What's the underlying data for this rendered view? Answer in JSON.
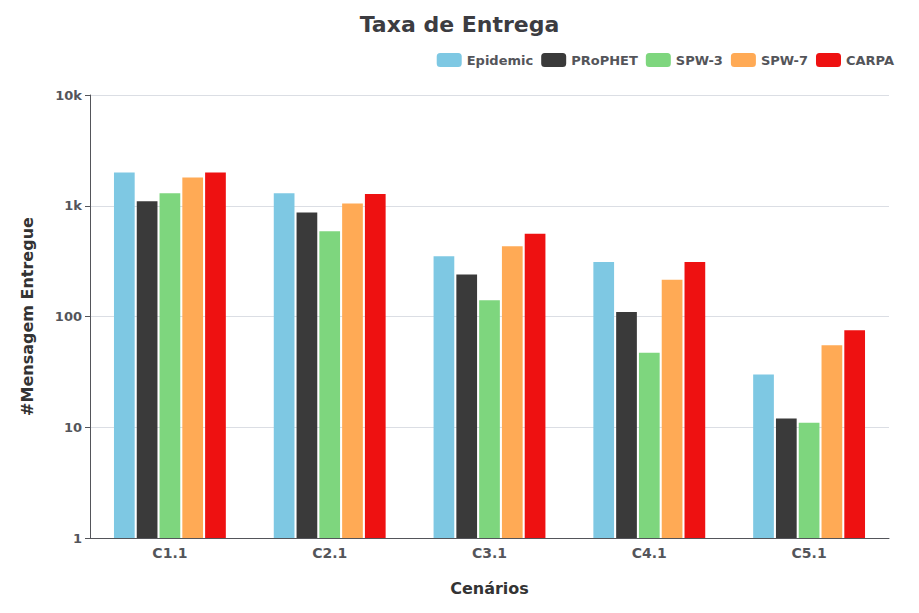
{
  "chart_data": {
    "type": "bar",
    "title": "Taxa de Entrega",
    "xlabel": "Cenários",
    "ylabel": "#Mensagem Entregue",
    "categories": [
      "C1.1",
      "C2.1",
      "C3.1",
      "C4.1",
      "C5.1"
    ],
    "series": [
      {
        "name": "Epidemic",
        "color": "#7ec8e3",
        "values": [
          2000,
          1300,
          350,
          310,
          30
        ]
      },
      {
        "name": "PRoPHET",
        "color": "#3a3a3a",
        "values": [
          1100,
          870,
          240,
          110,
          12
        ]
      },
      {
        "name": "SPW-3",
        "color": "#7ed67e",
        "values": [
          1300,
          590,
          140,
          47,
          11
        ]
      },
      {
        "name": "SPW-7",
        "color": "#ffaa55",
        "values": [
          1800,
          1050,
          430,
          215,
          55
        ]
      },
      {
        "name": "CARPA",
        "color": "#ee1111",
        "values": [
          2000,
          1280,
          560,
          310,
          75
        ]
      }
    ],
    "log": "y",
    "ylim": [
      1,
      10000
    ],
    "yticks": [
      1,
      10,
      100,
      {
        "value": 1000,
        "label": "1k"
      },
      {
        "value": 10000,
        "label": "10k"
      }
    ],
    "grid": true,
    "legend": "upper right"
  }
}
